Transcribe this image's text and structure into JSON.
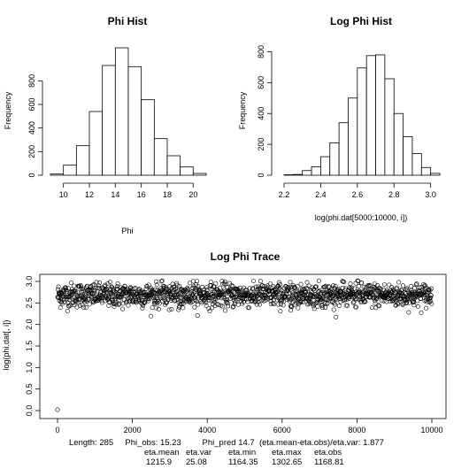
{
  "chart_data": [
    {
      "type": "bar",
      "title": "Phi Hist",
      "xlabel": "Phi",
      "ylabel": "Frequency",
      "bins": [
        {
          "start": 9,
          "end": 10,
          "count": 10
        },
        {
          "start": 10,
          "end": 11,
          "count": 85
        },
        {
          "start": 11,
          "end": 12,
          "count": 250
        },
        {
          "start": 12,
          "end": 13,
          "count": 540
        },
        {
          "start": 13,
          "end": 14,
          "count": 930
        },
        {
          "start": 14,
          "end": 15,
          "count": 1080
        },
        {
          "start": 15,
          "end": 16,
          "count": 920
        },
        {
          "start": 16,
          "end": 17,
          "count": 640
        },
        {
          "start": 17,
          "end": 18,
          "count": 310
        },
        {
          "start": 18,
          "end": 19,
          "count": 165
        },
        {
          "start": 19,
          "end": 20,
          "count": 70
        },
        {
          "start": 20,
          "end": 21,
          "count": 15
        }
      ],
      "xlim": [
        9,
        21
      ],
      "ylim": [
        0,
        1080
      ],
      "xticks": [
        10,
        12,
        14,
        16,
        18,
        20
      ],
      "yticks": [
        0,
        200,
        400,
        600,
        800
      ]
    },
    {
      "type": "bar",
      "title": "Log Phi Hist",
      "xlabel": "log(phi.dat[5000:10000, i])",
      "ylabel": "Frequency",
      "bins": [
        {
          "start": 2.2,
          "end": 2.25,
          "count": 3
        },
        {
          "start": 2.25,
          "end": 2.3,
          "count": 5
        },
        {
          "start": 2.3,
          "end": 2.35,
          "count": 30
        },
        {
          "start": 2.35,
          "end": 2.4,
          "count": 55
        },
        {
          "start": 2.4,
          "end": 2.45,
          "count": 120
        },
        {
          "start": 2.45,
          "end": 2.5,
          "count": 210
        },
        {
          "start": 2.5,
          "end": 2.55,
          "count": 340
        },
        {
          "start": 2.55,
          "end": 2.6,
          "count": 500
        },
        {
          "start": 2.6,
          "end": 2.65,
          "count": 695
        },
        {
          "start": 2.65,
          "end": 2.7,
          "count": 775
        },
        {
          "start": 2.7,
          "end": 2.75,
          "count": 780
        },
        {
          "start": 2.75,
          "end": 2.8,
          "count": 625
        },
        {
          "start": 2.8,
          "end": 2.85,
          "count": 400
        },
        {
          "start": 2.85,
          "end": 2.9,
          "count": 250
        },
        {
          "start": 2.9,
          "end": 2.95,
          "count": 140
        },
        {
          "start": 2.95,
          "end": 3.0,
          "count": 50
        },
        {
          "start": 3.0,
          "end": 3.05,
          "count": 12
        }
      ],
      "xlim": [
        2.2,
        3.05
      ],
      "ylim": [
        0,
        860
      ],
      "xticks": [
        2.2,
        2.4,
        2.6,
        2.8,
        3.0
      ],
      "yticks": [
        0,
        200,
        400,
        600,
        800
      ]
    },
    {
      "type": "scatter",
      "title": "Log Phi Trace",
      "xlabel": "",
      "ylabel": "log(phi.dat[, i])",
      "xlim": [
        0,
        10000
      ],
      "ylim": [
        0,
        3.0
      ],
      "xticks": [
        0,
        2000,
        4000,
        6000,
        8000,
        10000
      ],
      "yticks": [
        0.0,
        0.5,
        1.0,
        1.5,
        2.0,
        2.5,
        3.0
      ],
      "points": [
        {
          "x": 0,
          "y": 0.02
        },
        {
          "x": 50,
          "y": 2.55
        },
        {
          "x": 100,
          "y": 2.75
        }
      ],
      "trace": {
        "n_iter": 10000,
        "center": 2.68,
        "spread": 0.14,
        "min": 2.15,
        "max": 3.02
      }
    }
  ],
  "stats": {
    "line1": "Length: 285     Phi_obs: 15.23         Phi_pred 14.7  (eta.mean-eta.obs)/eta.var: 1.877",
    "headers": [
      "eta.mean",
      "eta.var",
      "eta.min",
      "eta.max",
      "eta.obs"
    ],
    "values": [
      "1215.9",
      "25.08",
      "1164.35",
      "1302.65",
      "1168.81"
    ]
  }
}
